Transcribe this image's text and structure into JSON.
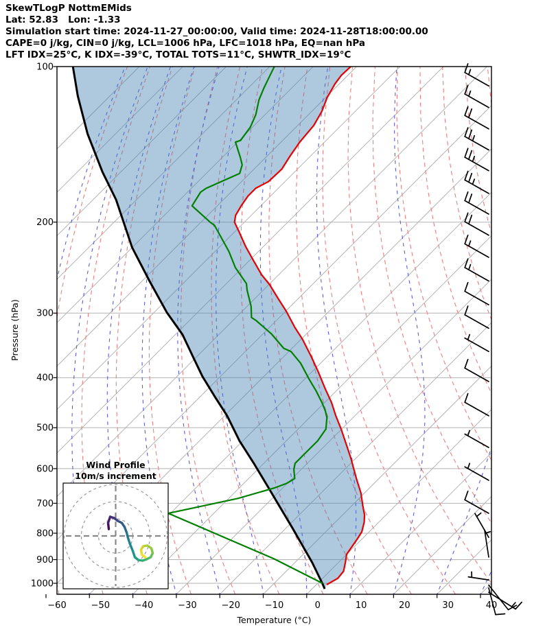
{
  "header": {
    "title": "SkewTLogP NottmEMids",
    "latlon": "Lat: 52.83   Lon: -1.33",
    "times": "Simulation start time: 2024-11-27_00:00:00, Valid time: 2024-11-28T18:00:00.00",
    "indices1": "CAPE=0 j/kg, CIN=0 j/kg, LCL=1006 hPa, LFC=1018 hPa, EQ=nan hPa",
    "indices2": "LFT IDX=25°C, K IDX=-39°C, TOTAL TOTS=11°C, SHWTR_IDX=19°C"
  },
  "axes": {
    "x_label": "Temperature (°C)",
    "y_label": "Pressure (hPa)",
    "x_tick_labels": [
      "−60",
      "−50",
      "−40",
      "−30",
      "−20",
      "−10",
      "0",
      "10",
      "20",
      "30",
      "40"
    ],
    "y_tick_labels": [
      "100",
      "200",
      "300",
      "400",
      "500",
      "600",
      "700",
      "800",
      "900",
      "1000"
    ]
  },
  "chart_data": {
    "type": "skewt-logp",
    "title": "SkewTLogP NottmEMids",
    "x_axis": {
      "label": "Temperature (°C)",
      "range": [
        -60,
        40
      ],
      "ticks": [
        -60,
        -50,
        -40,
        -30,
        -20,
        -10,
        0,
        10,
        20,
        30,
        40
      ]
    },
    "y_axis": {
      "label": "Pressure (hPa)",
      "range": [
        1050,
        100
      ],
      "scale": "log",
      "ticks": [
        100,
        200,
        300,
        400,
        500,
        600,
        700,
        800,
        900,
        1000
      ]
    },
    "skew_deg": 45,
    "background": {
      "isotherms_c": {
        "start": -160,
        "end": 40,
        "step": 10
      },
      "dry_adiabats_theta_c": {
        "start": -60,
        "end": 110,
        "step": 10
      },
      "moist_adiabats_c": {
        "start": -60,
        "end": 40,
        "step": 10
      }
    },
    "series": {
      "temperature": {
        "name": "Temperature",
        "points": [
          [
            1006,
            2.4
          ],
          [
            978,
            3.5
          ],
          [
            948,
            3.2
          ],
          [
            912,
            1.6
          ],
          [
            879,
            0.0
          ],
          [
            857,
            -0.4
          ],
          [
            820,
            -1.1
          ],
          [
            795,
            -1.7
          ],
          [
            761,
            -3.4
          ],
          [
            738,
            -4.9
          ],
          [
            711,
            -7.2
          ],
          [
            668,
            -10.9
          ],
          [
            629,
            -15.0
          ],
          [
            574,
            -21.0
          ],
          [
            540,
            -25.2
          ],
          [
            503,
            -30.1
          ],
          [
            474,
            -34.4
          ],
          [
            447,
            -38.4
          ],
          [
            420,
            -43.1
          ],
          [
            390,
            -48.5
          ],
          [
            364,
            -53.7
          ],
          [
            337,
            -59.7
          ],
          [
            320,
            -64.1
          ],
          [
            297,
            -70.0
          ],
          [
            281,
            -74.7
          ],
          [
            264,
            -79.9
          ],
          [
            253,
            -83.9
          ],
          [
            237,
            -89.2
          ],
          [
            223,
            -94.1
          ],
          [
            208,
            -99.3
          ],
          [
            200,
            -102.3
          ],
          [
            194,
            -103.6
          ],
          [
            186,
            -104.5
          ],
          [
            178,
            -105.2
          ],
          [
            172,
            -105.2
          ],
          [
            167,
            -103.8
          ],
          [
            158,
            -103.6
          ],
          [
            149,
            -104.7
          ],
          [
            140,
            -105.7
          ],
          [
            130,
            -106.3
          ],
          [
            122,
            -107.7
          ],
          [
            115,
            -109.6
          ],
          [
            108,
            -111.0
          ],
          [
            104,
            -111.5
          ],
          [
            99,
            -111.3
          ]
        ]
      },
      "dewpoint": {
        "name": "Dewpoint",
        "points": [
          [
            99,
            -129.2
          ],
          [
            104,
            -127.9
          ],
          [
            110,
            -126.4
          ],
          [
            116,
            -124.8
          ],
          [
            124,
            -122.1
          ],
          [
            131,
            -120.5
          ],
          [
            139,
            -119.7
          ],
          [
            140,
            -120.5
          ],
          [
            150,
            -115.8
          ],
          [
            155,
            -113.7
          ],
          [
            161,
            -112.3
          ],
          [
            172,
            -116.6
          ],
          [
            175,
            -117.0
          ],
          [
            186,
            -115.8
          ],
          [
            200,
            -107.9
          ],
          [
            203,
            -106.1
          ],
          [
            228,
            -96.8
          ],
          [
            245,
            -91.6
          ],
          [
            263,
            -85.4
          ],
          [
            271,
            -83.7
          ],
          [
            291,
            -79.1
          ],
          [
            306,
            -76.4
          ],
          [
            310,
            -74.7
          ],
          [
            329,
            -68.1
          ],
          [
            351,
            -61.9
          ],
          [
            356,
            -59.5
          ],
          [
            375,
            -54.6
          ],
          [
            403,
            -48.9
          ],
          [
            424,
            -44.7
          ],
          [
            447,
            -40.6
          ],
          [
            464,
            -37.9
          ],
          [
            478,
            -36.0
          ],
          [
            503,
            -33.6
          ],
          [
            530,
            -32.8
          ],
          [
            567,
            -32.8
          ],
          [
            586,
            -32.8
          ],
          [
            602,
            -31.7
          ],
          [
            627,
            -29.4
          ],
          [
            640,
            -30.1
          ],
          [
            654,
            -31.9
          ],
          [
            685,
            -37.9
          ],
          [
            732,
            -50.5
          ],
          [
            897,
            -15.6
          ],
          [
            1000,
            1.1
          ]
        ]
      },
      "parcel": {
        "name": "Parcel reference",
        "points": [
          [
            100,
            -175.3
          ],
          [
            114,
            -167.4
          ],
          [
            135,
            -156.4
          ],
          [
            160,
            -144.2
          ],
          [
            181,
            -134.7
          ],
          [
            224,
            -120.0
          ],
          [
            260,
            -108.3
          ],
          [
            299,
            -97.1
          ],
          [
            330,
            -88.4
          ],
          [
            368,
            -80.1
          ],
          [
            398,
            -74.1
          ],
          [
            437,
            -66.3
          ],
          [
            474,
            -59.4
          ],
          [
            530,
            -50.8
          ],
          [
            586,
            -42.3
          ],
          [
            651,
            -33.6
          ],
          [
            714,
            -26.0
          ],
          [
            781,
            -18.6
          ],
          [
            844,
            -12.3
          ],
          [
            912,
            -6.0
          ],
          [
            1003,
            1.3
          ],
          [
            1025,
            2.9
          ]
        ]
      }
    },
    "wind_barbs": {
      "note": "full feather = 10 m/s, half = 5 m/s",
      "levels": [
        {
          "p": 109,
          "full": 1,
          "half": 1,
          "dir": "nw"
        },
        {
          "p": 120,
          "full": 1,
          "half": 1,
          "dir": "nw"
        },
        {
          "p": 132,
          "full": 2,
          "half": 0,
          "dir": "nw"
        },
        {
          "p": 145,
          "full": 2,
          "half": 1,
          "dir": "nw"
        },
        {
          "p": 159,
          "full": 2,
          "half": 1,
          "dir": "nw"
        },
        {
          "p": 176,
          "full": 2,
          "half": 1,
          "dir": "nw"
        },
        {
          "p": 193,
          "full": 2,
          "half": 0,
          "dir": "nw"
        },
        {
          "p": 212,
          "full": 2,
          "half": 0,
          "dir": "nw"
        },
        {
          "p": 234,
          "full": 1,
          "half": 1,
          "dir": "nw"
        },
        {
          "p": 260,
          "full": 1,
          "half": 1,
          "dir": "nw"
        },
        {
          "p": 289,
          "full": 1,
          "half": 0,
          "dir": "nw"
        },
        {
          "p": 321,
          "full": 1,
          "half": 0,
          "dir": "nw"
        },
        {
          "p": 356,
          "full": 0,
          "half": 1,
          "dir": "nw"
        },
        {
          "p": 407,
          "full": 1,
          "half": 0,
          "dir": "nw"
        },
        {
          "p": 474,
          "full": 1,
          "half": 0,
          "dir": "nw"
        },
        {
          "p": 546,
          "full": 0,
          "half": 1,
          "dir": "nw"
        },
        {
          "p": 632,
          "full": 0,
          "half": 1,
          "dir": "nw"
        },
        {
          "p": 732,
          "full": 1,
          "half": 0,
          "dir": "nw"
        },
        {
          "p": 815,
          "full": 0,
          "half": 1,
          "dir": "nnw"
        },
        {
          "p": 890,
          "full": 0,
          "half": 1,
          "dir": "n"
        },
        {
          "p": 985,
          "full": 0,
          "half": 1,
          "dir": "w",
          "len": 30
        },
        {
          "p": 1008,
          "full": 1,
          "half": 0,
          "dir": "se",
          "len": 46
        },
        {
          "p": 1021,
          "full": 1,
          "half": 0,
          "dir": "s",
          "len": 40
        },
        {
          "p": 1041,
          "full": 1,
          "half": 1,
          "dir": "ese",
          "len": 46
        }
      ]
    },
    "hodograph": {
      "title_line1": "Wind Profile",
      "title_line2": "10m/s increment",
      "rings_ms": [
        10,
        20,
        30
      ],
      "trace_ms": [
        [
          -4.0,
          4.0
        ],
        [
          -4.4,
          7.6
        ],
        [
          -3.2,
          11.2
        ],
        [
          -0.8,
          10.4
        ],
        [
          1.2,
          8.8
        ],
        [
          3.6,
          7.6
        ],
        [
          5.2,
          5.2
        ],
        [
          6.4,
          2.0
        ],
        [
          7.2,
          -1.2
        ],
        [
          8.4,
          -4.8
        ],
        [
          10.0,
          -8.8
        ],
        [
          11.2,
          -12.4
        ],
        [
          13.2,
          -14.0
        ],
        [
          15.6,
          -14.4
        ],
        [
          18.0,
          -13.6
        ],
        [
          20.4,
          -12.4
        ],
        [
          21.6,
          -10.0
        ],
        [
          20.8,
          -7.2
        ],
        [
          18.4,
          -5.6
        ],
        [
          16.0,
          -6.0
        ],
        [
          14.8,
          -8.0
        ],
        [
          15.2,
          -10.8
        ],
        [
          17.2,
          -12.4
        ]
      ],
      "trace_colors": [
        "#450d59",
        "#461f6d",
        "#453078",
        "#3f3f80",
        "#395086",
        "#335d89",
        "#2d698c",
        "#28748e",
        "#237f8e",
        "#1f898d",
        "#1e938b",
        "#209d86",
        "#28a77e",
        "#38b073",
        "#4cb866",
        "#63bf57",
        "#7dc548",
        "#98cb3c",
        "#b3d032",
        "#cdd52c",
        "#e3da2b",
        "#f2e12e"
      ]
    },
    "colors": {
      "temperature": "#e80000",
      "dewpoint": "#008000",
      "parcel": "#000000",
      "cape_shade": "#4682b4",
      "cape_shade_opacity": 0.44,
      "isotherm": "#b3b3b3",
      "grid": "#b3b3b3",
      "dry_adiabat": "#f07d7d",
      "moist_adiabat": "#5b5bdc",
      "barb": "#000000",
      "hodo_ring": "#999999",
      "hodo_cross": "#888888"
    }
  }
}
